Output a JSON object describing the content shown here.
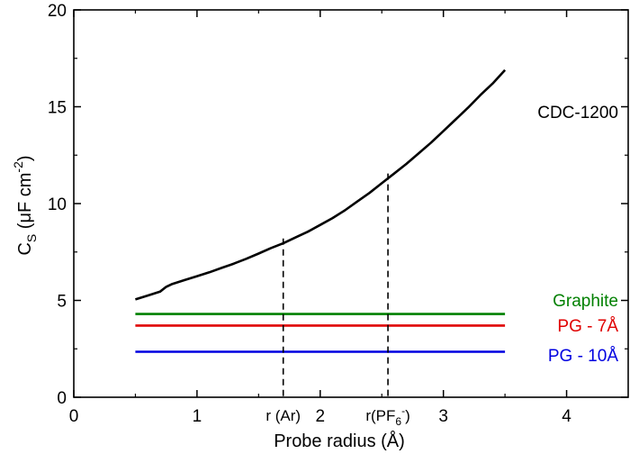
{
  "chart_data": {
    "type": "line",
    "title": "",
    "xlabel": "Probe radius (Å)",
    "ylabel": {
      "main": "C",
      "sub": "S",
      "unit_open": " (μF cm",
      "unit_sup": "-2",
      "unit_close": ")"
    },
    "xlim": [
      0,
      4.5
    ],
    "ylim": [
      0,
      20
    ],
    "x_ticks": [
      0,
      1,
      2,
      3,
      4
    ],
    "y_ticks": [
      0,
      5,
      10,
      15,
      20
    ],
    "grid": false,
    "series": [
      {
        "name": "CDC-1200",
        "color": "#000000",
        "x": [
          0.5,
          0.6,
          0.7,
          0.75,
          0.8,
          0.9,
          1.0,
          1.1,
          1.2,
          1.3,
          1.4,
          1.5,
          1.6,
          1.7,
          1.8,
          1.9,
          2.0,
          2.1,
          2.2,
          2.3,
          2.4,
          2.5,
          2.6,
          2.7,
          2.8,
          2.9,
          3.0,
          3.1,
          3.2,
          3.3,
          3.4,
          3.5
        ],
        "y": [
          5.05,
          5.25,
          5.45,
          5.7,
          5.85,
          6.05,
          6.25,
          6.45,
          6.68,
          6.9,
          7.15,
          7.42,
          7.7,
          7.95,
          8.25,
          8.55,
          8.9,
          9.25,
          9.65,
          10.1,
          10.55,
          11.05,
          11.55,
          12.05,
          12.6,
          13.15,
          13.75,
          14.35,
          14.95,
          15.6,
          16.2,
          16.9
        ]
      },
      {
        "name": "Graphite",
        "color": "#008000",
        "x": [
          0.5,
          3.5
        ],
        "y": [
          4.3,
          4.3
        ]
      },
      {
        "name": "PG -  7Å",
        "color": "#e00000",
        "x": [
          0.5,
          3.5
        ],
        "y": [
          3.7,
          3.7
        ]
      },
      {
        "name": "PG - 10Å",
        "color": "#0000e0",
        "x": [
          0.5,
          3.5
        ],
        "y": [
          2.35,
          2.35
        ]
      }
    ],
    "annotations": [
      {
        "name": "ar",
        "x": 1.7,
        "y": 8.2,
        "label": "r (Ar)",
        "sub": "",
        "sup": ""
      },
      {
        "name": "pf6",
        "x": 2.55,
        "y": 11.55,
        "label": "r(PF",
        "sub": "6",
        "sup": "-",
        "close": ")"
      }
    ]
  }
}
